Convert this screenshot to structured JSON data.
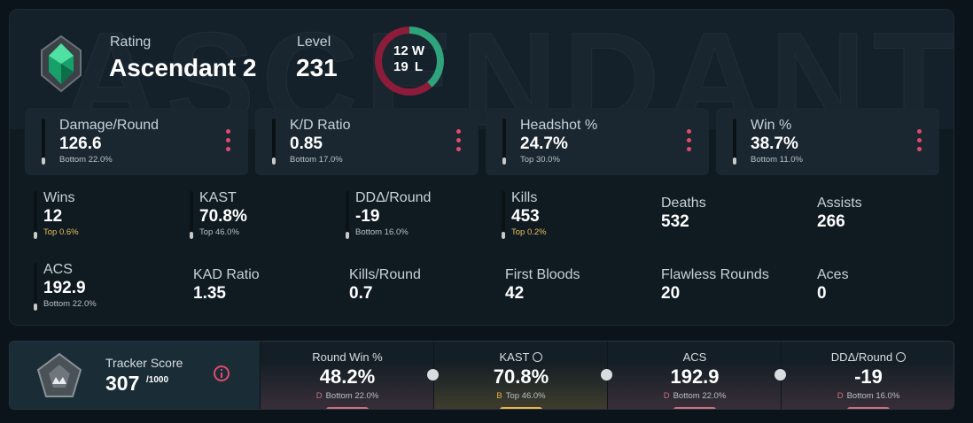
{
  "header": {
    "watermark": "ASCENDANT",
    "rating_label": "Rating",
    "rating": "Ascendant 2",
    "level_label": "Level",
    "level": "231",
    "record": {
      "wins": 12,
      "wins_label": "W",
      "losses": 19,
      "losses_label": "L",
      "wins_color": "#2ea37c",
      "losses_color": "#8c1c3a"
    }
  },
  "cards": [
    {
      "label": "Damage/Round",
      "value": "126.6",
      "percentile": "Bottom 22.0%"
    },
    {
      "label": "K/D Ratio",
      "value": "0.85",
      "percentile": "Bottom 17.0%"
    },
    {
      "label": "Headshot %",
      "value": "24.7%",
      "percentile": "Top 30.0%"
    },
    {
      "label": "Win %",
      "value": "38.7%",
      "percentile": "Bottom 11.0%"
    }
  ],
  "stats": [
    {
      "label": "Wins",
      "value": "12",
      "percentile": "Top 0.6%",
      "highlight": true
    },
    {
      "label": "KAST",
      "value": "70.8%",
      "percentile": "Top 46.0%"
    },
    {
      "label": "DDΔ/Round",
      "value": "-19",
      "percentile": "Bottom 16.0%"
    },
    {
      "label": "Kills",
      "value": "453",
      "percentile": "Top 0.2%",
      "highlight": true
    },
    {
      "label": "Deaths",
      "value": "532"
    },
    {
      "label": "Assists",
      "value": "266"
    },
    {
      "label": "ACS",
      "value": "192.9",
      "percentile": "Bottom 22.0%"
    },
    {
      "label": "KAD Ratio",
      "value": "1.35"
    },
    {
      "label": "Kills/Round",
      "value": "0.7"
    },
    {
      "label": "First Bloods",
      "value": "42"
    },
    {
      "label": "Flawless Rounds",
      "value": "20"
    },
    {
      "label": "Aces",
      "value": "0"
    }
  ],
  "tracker": {
    "title": "Tracker Score",
    "score": "307",
    "max": "/1000",
    "metrics": [
      {
        "label": "Round Win %",
        "value": "48.2%",
        "grade": "D",
        "percentile": "Bottom 22.0%",
        "info": false,
        "color": "#c9707e"
      },
      {
        "label": "KAST",
        "value": "70.8%",
        "grade": "B",
        "percentile": "Top 46.0%",
        "info": true,
        "color": "#e8b64a"
      },
      {
        "label": "ACS",
        "value": "192.9",
        "grade": "D",
        "percentile": "Bottom 22.0%",
        "info": false,
        "color": "#c9707e"
      },
      {
        "label": "DDΔ/Round",
        "value": "-19",
        "grade": "D",
        "percentile": "Bottom 16.0%",
        "info": true,
        "color": "#c9707e"
      }
    ]
  }
}
